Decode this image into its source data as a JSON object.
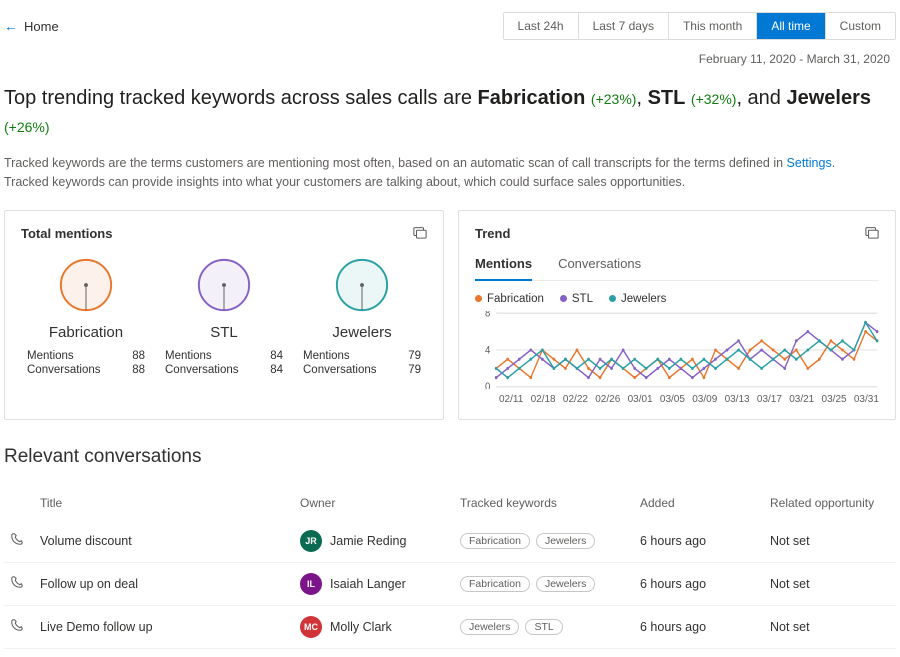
{
  "nav": {
    "home_label": "Home"
  },
  "time_filter": {
    "options": [
      "Last 24h",
      "Last 7 days",
      "This month",
      "All time",
      "Custom"
    ],
    "active_index": 3
  },
  "date_range": "February 11, 2020 - March 31, 2020",
  "headline": {
    "prefix": "Top trending tracked keywords across sales calls are ",
    "kws": [
      {
        "name": "Fabrication",
        "pct": "(+23%)"
      },
      {
        "name": "STL",
        "pct": "(+32%)"
      },
      {
        "name": "Jewelers",
        "pct": "(+26%)"
      }
    ],
    "sep": ", ",
    "last_sep": ", and "
  },
  "description": {
    "line1a": "Tracked keywords are the terms customers are mentioning most often, based on an automatic scan of call transcripts for the terms defined in ",
    "settings_link": "Settings",
    "line1b": ".",
    "line2": "Tracked keywords can provide insights into what your customers are talking about, which could surface sales opportunities."
  },
  "mentions_panel": {
    "title": "Total mentions",
    "stat_labels": {
      "mentions": "Mentions",
      "conversations": "Conversations"
    },
    "items": [
      {
        "name": "Fabrication",
        "color": "#e8762c",
        "mentions": 88,
        "conversations": 88
      },
      {
        "name": "STL",
        "color": "#8661c5",
        "mentions": 84,
        "conversations": 84
      },
      {
        "name": "Jewelers",
        "color": "#2aa0a4",
        "mentions": 79,
        "conversations": 79
      }
    ]
  },
  "trend_panel": {
    "title": "Trend",
    "tabs": [
      "Mentions",
      "Conversations"
    ],
    "active_tab_index": 0,
    "chart": {
      "type": "line",
      "ylim": [
        0,
        8
      ],
      "yticks": [
        0,
        4,
        8
      ],
      "x_labels": [
        "02/11",
        "02/18",
        "02/22",
        "02/26",
        "03/01",
        "03/05",
        "03/09",
        "03/13",
        "03/17",
        "03/21",
        "03/25",
        "03/31"
      ],
      "grid_color": "#e1dfdd",
      "background_color": "#ffffff",
      "series": [
        {
          "name": "Fabrication",
          "color": "#e8762c",
          "values": [
            2,
            3,
            2,
            1,
            4,
            3,
            2,
            4,
            2,
            1,
            3,
            2,
            1,
            2,
            3,
            1,
            2,
            3,
            1,
            4,
            3,
            2,
            4,
            5,
            4,
            3,
            4,
            2,
            3,
            5,
            4,
            3,
            6,
            5
          ]
        },
        {
          "name": "STL",
          "color": "#8661c5",
          "values": [
            1,
            2,
            3,
            4,
            3,
            2,
            3,
            2,
            1,
            3,
            2,
            4,
            2,
            1,
            2,
            3,
            2,
            1,
            2,
            3,
            4,
            5,
            3,
            4,
            3,
            2,
            5,
            6,
            5,
            4,
            3,
            4,
            7,
            6
          ]
        },
        {
          "name": "Jewelers",
          "color": "#2aa0a4",
          "values": [
            2,
            1,
            2,
            3,
            4,
            2,
            3,
            2,
            3,
            2,
            3,
            2,
            3,
            2,
            3,
            2,
            3,
            2,
            3,
            2,
            3,
            4,
            3,
            2,
            3,
            4,
            3,
            4,
            5,
            4,
            5,
            4,
            7,
            5
          ]
        }
      ]
    }
  },
  "conversations": {
    "title": "Relevant conversations",
    "columns": {
      "title": "Title",
      "owner": "Owner",
      "tracked": "Tracked keywords",
      "added": "Added",
      "opportunity": "Related opportunity"
    },
    "rows": [
      {
        "title": "Volume discount",
        "owner": "Jamie Reding",
        "initials": "JR",
        "avatar_color": "#0b6a52",
        "keywords": [
          "Fabrication",
          "Jewelers"
        ],
        "added": "6 hours ago",
        "opportunity": "Not set"
      },
      {
        "title": "Follow up on deal",
        "owner": "Isaiah Langer",
        "initials": "IL",
        "avatar_color": "#7c158a",
        "keywords": [
          "Fabrication",
          "Jewelers"
        ],
        "added": "6 hours ago",
        "opportunity": "Not set"
      },
      {
        "title": "Live Demo follow up",
        "owner": "Molly Clark",
        "initials": "MC",
        "avatar_color": "#d13438",
        "keywords": [
          "Jewelers",
          "STL"
        ],
        "added": "6 hours ago",
        "opportunity": "Not set"
      }
    ]
  }
}
